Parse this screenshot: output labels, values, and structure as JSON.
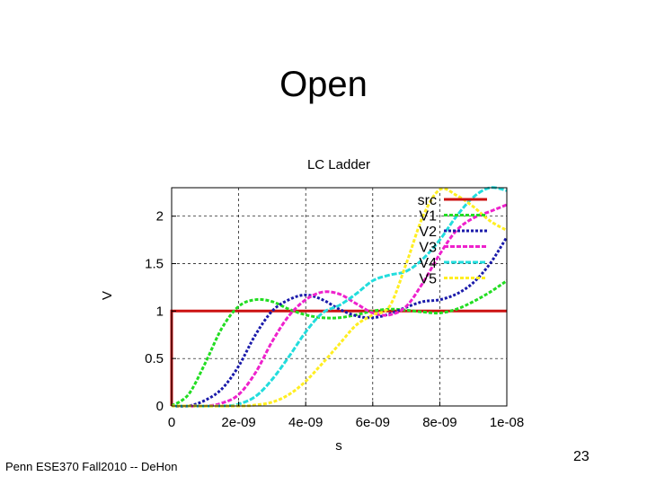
{
  "slide": {
    "title": "Open",
    "footer": "Penn ESE370 Fall2010 -- DeHon",
    "page_number": "23"
  },
  "chart_data": {
    "type": "line",
    "title": "LC Ladder",
    "xlabel": "s",
    "ylabel": "V",
    "xlim": [
      0,
      1e-08
    ],
    "ylim": [
      0,
      2.3
    ],
    "x_ticks": [
      {
        "value": 0,
        "label": "0"
      },
      {
        "value": 2e-09,
        "label": "2e-09"
      },
      {
        "value": 4e-09,
        "label": "4e-09"
      },
      {
        "value": 6e-09,
        "label": "6e-09"
      },
      {
        "value": 8e-09,
        "label": "8e-09"
      },
      {
        "value": 1e-08,
        "label": "1e-08"
      }
    ],
    "y_ticks": [
      {
        "value": 0,
        "label": "0"
      },
      {
        "value": 0.5,
        "label": "0.5"
      },
      {
        "value": 1,
        "label": "1"
      },
      {
        "value": 1.5,
        "label": "1.5"
      },
      {
        "value": 2,
        "label": "2"
      }
    ],
    "grid": "dashed",
    "legend_position": "top-right",
    "series": [
      {
        "name": "src",
        "color": "#cc1111",
        "dash": "solid",
        "x": [
          0,
          0,
          1e-08
        ],
        "y": [
          0,
          1.0,
          1.0
        ]
      },
      {
        "name": "V1",
        "color": "#22dd22",
        "dash": "4,2",
        "x": [
          0,
          5e-10,
          1e-09,
          1.5e-09,
          2e-09,
          2.5e-09,
          3e-09,
          3.5e-09,
          4e-09,
          4.5e-09,
          5e-09,
          5.5e-09,
          6e-09,
          6.5e-09,
          7e-09,
          7.5e-09,
          8e-09,
          8.5e-09,
          9e-09,
          9.5e-09,
          1e-08
        ],
        "y": [
          0,
          0.12,
          0.45,
          0.82,
          1.05,
          1.12,
          1.1,
          1.02,
          0.96,
          0.93,
          0.93,
          0.96,
          1.0,
          1.02,
          1.01,
          0.99,
          0.98,
          1.02,
          1.1,
          1.2,
          1.32
        ]
      },
      {
        "name": "V2",
        "color": "#1a1aaa",
        "dash": "3,2",
        "x": [
          0,
          5e-10,
          1e-09,
          1.5e-09,
          2e-09,
          2.5e-09,
          3e-09,
          3.5e-09,
          4e-09,
          4.5e-09,
          5e-09,
          5.5e-09,
          6e-09,
          6.5e-09,
          7e-09,
          7.5e-09,
          8e-09,
          8.5e-09,
          9e-09,
          9.5e-09,
          1e-08
        ],
        "y": [
          0,
          0.0,
          0.06,
          0.18,
          0.42,
          0.75,
          1.0,
          1.12,
          1.17,
          1.12,
          1.02,
          0.95,
          0.93,
          0.97,
          1.04,
          1.1,
          1.12,
          1.18,
          1.3,
          1.5,
          1.78
        ]
      },
      {
        "name": "V3",
        "color": "#ee22cc",
        "dash": "5,2",
        "x": [
          0,
          1e-09,
          1.5e-09,
          2e-09,
          2.5e-09,
          3e-09,
          3.5e-09,
          4e-09,
          4.5e-09,
          5e-09,
          5.5e-09,
          6e-09,
          6.5e-09,
          7e-09,
          7.5e-09,
          8e-09,
          8.5e-09,
          9e-09,
          9.5e-09,
          1e-08
        ],
        "y": [
          0,
          0.0,
          0.03,
          0.12,
          0.35,
          0.68,
          0.95,
          1.12,
          1.2,
          1.18,
          1.08,
          0.98,
          0.96,
          1.05,
          1.3,
          1.6,
          1.85,
          1.98,
          2.05,
          2.12
        ]
      },
      {
        "name": "V4",
        "color": "#22dddd",
        "dash": "6,2",
        "x": [
          0,
          1.5e-09,
          2e-09,
          2.5e-09,
          3e-09,
          3.5e-09,
          4e-09,
          4.5e-09,
          5e-09,
          5.5e-09,
          6e-09,
          6.5e-09,
          7e-09,
          7.5e-09,
          8e-09,
          8.5e-09,
          9e-09,
          9.5e-09,
          1e-08
        ],
        "y": [
          0,
          0.0,
          0.02,
          0.1,
          0.28,
          0.52,
          0.78,
          0.98,
          1.06,
          1.18,
          1.32,
          1.38,
          1.42,
          1.55,
          1.75,
          2.0,
          2.2,
          2.3,
          2.27
        ]
      },
      {
        "name": "V5",
        "color": "#ffee22",
        "dash": "4,2",
        "x": [
          0,
          2e-09,
          2.5e-09,
          3e-09,
          3.5e-09,
          4e-09,
          4.5e-09,
          5e-09,
          5.5e-09,
          6e-09,
          6.5e-09,
          7e-09,
          7.5e-09,
          8e-09,
          8.5e-09,
          9e-09,
          9.5e-09,
          1e-08
        ],
        "y": [
          0,
          0.0,
          0.01,
          0.04,
          0.12,
          0.26,
          0.45,
          0.65,
          0.85,
          0.96,
          1.05,
          1.5,
          2.0,
          2.28,
          2.22,
          2.1,
          1.95,
          1.85
        ]
      }
    ]
  }
}
